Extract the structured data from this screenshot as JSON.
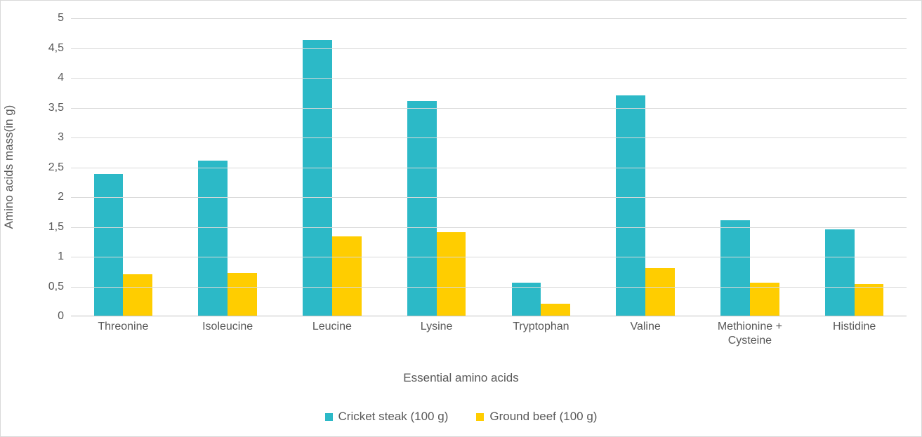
{
  "chart": {
    "type": "bar",
    "background_color": "#ffffff",
    "border_color": "#d9d9d9",
    "grid_color": "#d9d9d9",
    "axis_line_color": "#bfbfbf",
    "text_color": "#595959",
    "label_fontsize": 16,
    "axis_title_fontsize": 17,
    "y_axis": {
      "title": "Amino acids mass(in g)",
      "min": 0,
      "max": 5,
      "tick_step": 0.5,
      "ticks": [
        "0",
        "0,5",
        "1",
        "1,5",
        "2",
        "2,5",
        "3",
        "3,5",
        "4",
        "4,5",
        "5"
      ]
    },
    "x_axis": {
      "title": "Essential amino acids"
    },
    "categories": [
      "Threonine",
      "Isoleucine",
      "Leucine",
      "Lysine",
      "Tryptophan",
      "Valine",
      "Methionine +\nCysteine",
      "Histidine"
    ],
    "series": [
      {
        "name": "Cricket  steak (100 g)",
        "color": "#2cb9c7",
        "values": [
          2.38,
          2.6,
          4.62,
          3.6,
          0.55,
          3.7,
          1.6,
          1.45
        ]
      },
      {
        "name": "Ground beef (100 g)",
        "color": "#ffcd00",
        "values": [
          0.7,
          0.72,
          1.33,
          1.4,
          0.2,
          0.8,
          0.55,
          0.53
        ]
      }
    ],
    "bar_width_ratio": 0.28,
    "group_gap_ratio": 0.0
  }
}
